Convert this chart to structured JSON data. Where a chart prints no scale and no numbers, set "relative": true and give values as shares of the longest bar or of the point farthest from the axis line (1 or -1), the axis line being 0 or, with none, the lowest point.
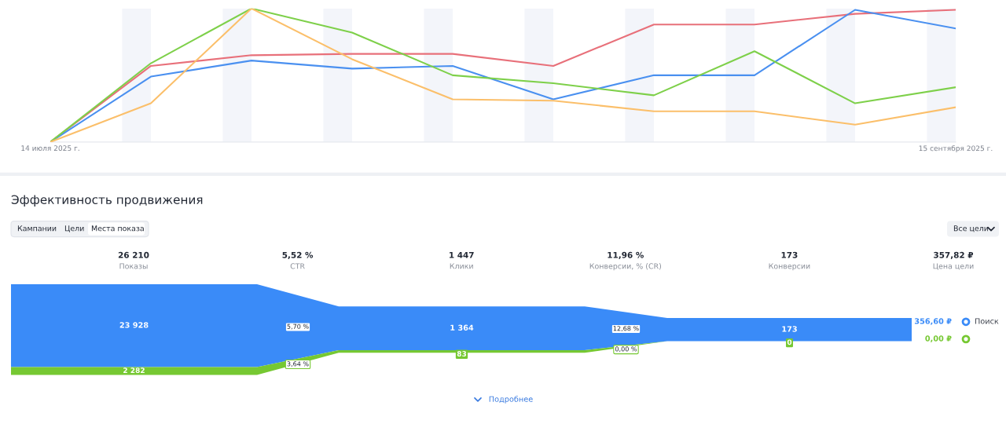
{
  "chart_data": [
    {
      "type": "line",
      "relative": true,
      "tick_labels": "x",
      "line_style": "solid",
      "marker": "none",
      "x": [
        "2025-07-14",
        "2025-07-21",
        "2025-07-28",
        "2025-08-04",
        "2025-08-11",
        "2025-08-18",
        "2025-08-25",
        "2025-09-01",
        "2025-09-08",
        "2025-09-15"
      ],
      "xlim": [
        "2025-07-14",
        "2025-09-15"
      ],
      "xticks": [
        {
          "value": "2025-07-14",
          "label": "14 июля 2025 г."
        },
        {
          "value": "2025-09-15",
          "label": "15 сентября 2025 г."
        }
      ],
      "series": [
        {
          "color": "#e8707a",
          "values": [
            0,
            0.57,
            0.65,
            0.66,
            0.66,
            0.57,
            0.88,
            0.88,
            0.96,
            0.99
          ]
        },
        {
          "color": "#4a90f0",
          "values": [
            0,
            0.49,
            0.61,
            0.55,
            0.57,
            0.32,
            0.5,
            0.5,
            0.99,
            0.85
          ]
        },
        {
          "color": "#7ed04a",
          "values": [
            0,
            0.59,
            1.0,
            0.82,
            0.5,
            0.44,
            0.35,
            0.68,
            0.29,
            0.41
          ]
        },
        {
          "color": "#fbbf6a",
          "values": [
            0,
            0.29,
            1.0,
            0.62,
            0.32,
            0.31,
            0.23,
            0.23,
            0.13,
            0.26
          ]
        }
      ],
      "bands": [
        {
          "axis": "x",
          "from": "2025-07-19",
          "to": "2025-07-21",
          "color": "#f3f5fa"
        },
        {
          "axis": "x",
          "from": "2025-07-26",
          "to": "2025-07-28",
          "color": "#f3f5fa"
        },
        {
          "axis": "x",
          "from": "2025-08-02",
          "to": "2025-08-04",
          "color": "#f3f5fa"
        },
        {
          "axis": "x",
          "from": "2025-08-09",
          "to": "2025-08-11",
          "color": "#f3f5fa"
        },
        {
          "axis": "x",
          "from": "2025-08-16",
          "to": "2025-08-18",
          "color": "#f3f5fa"
        },
        {
          "axis": "x",
          "from": "2025-08-23",
          "to": "2025-08-25",
          "color": "#f3f5fa"
        },
        {
          "axis": "x",
          "from": "2025-08-30",
          "to": "2025-09-01",
          "color": "#f3f5fa"
        },
        {
          "axis": "x",
          "from": "2025-09-06",
          "to": "2025-09-08",
          "color": "#f3f5fa"
        },
        {
          "axis": "x",
          "from": "2025-09-13",
          "to": "2025-09-15",
          "color": "#f3f5fa"
        }
      ]
    },
    {
      "type": "other",
      "title": "Эффективность продвижения",
      "categories": [
        "Показы",
        "CTR",
        "Клики",
        "Конверсии, % (CR)",
        "Конверсии",
        "Цена цели"
      ],
      "values": [
        26210,
        5.52,
        1447,
        11.96,
        173,
        357.82
      ],
      "value_labels": [
        "26 210",
        "5,52 %",
        "1 447",
        "11,96 %",
        "173",
        "357,82 ₽"
      ],
      "series": [
        {
          "name": "Поиск",
          "color": "#3a8bf8",
          "values": [
            23928,
            5.7,
            1364,
            12.68,
            173,
            356.6
          ],
          "value_labels": [
            "23 928",
            "5,70 %",
            "1 364",
            "12,68 %",
            "173",
            "356,60 ₽"
          ]
        },
        {
          "color": "#76c832",
          "values": [
            2282,
            3.64,
            83,
            0,
            0,
            0
          ],
          "value_labels": [
            "2 282",
            "3,64 %",
            "83",
            "0,00 %",
            "0",
            "0,00 ₽"
          ]
        }
      ],
      "annotations": [
        "Кампании",
        "Цели",
        "Места показа",
        "Все цели",
        "Подробнее"
      ]
    }
  ]
}
